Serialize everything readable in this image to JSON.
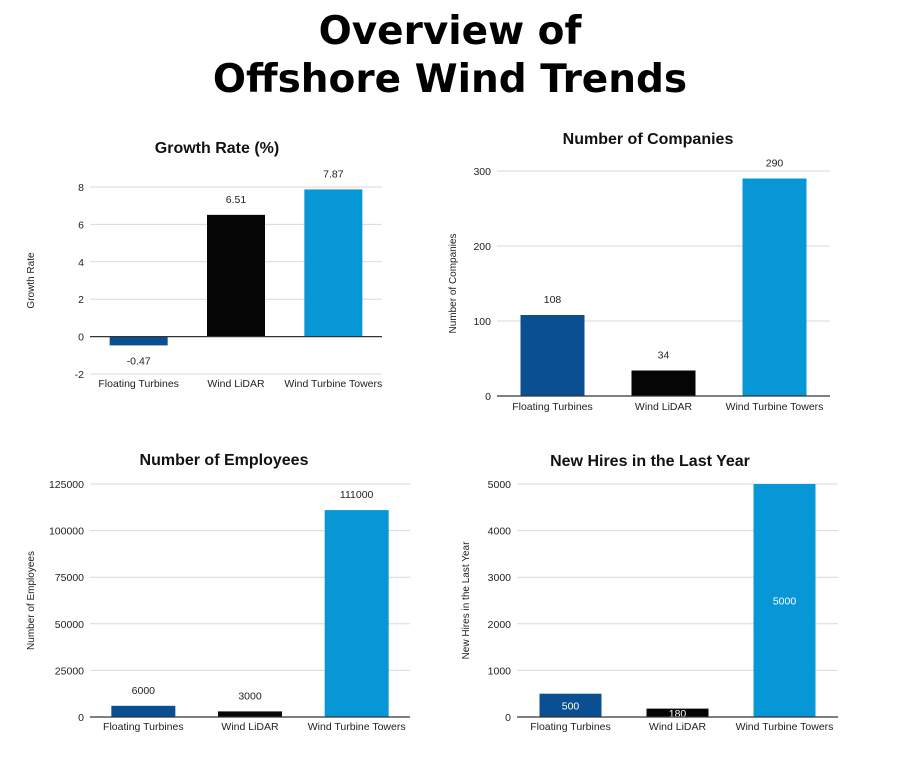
{
  "page_title": [
    "Overview of",
    "Offshore Wind Trends"
  ],
  "colors": {
    "floating": "#0b4f93",
    "lidar": "#050505",
    "towers": "#0797d6",
    "grid": "#d8d8d8",
    "axis": "#333333"
  },
  "chart_data": [
    {
      "type": "bar",
      "title": "Growth Rate (%)",
      "ylabel": "Growth Rate",
      "xlabel": "",
      "categories": [
        "Floating Turbines",
        "Wind LiDAR",
        "Wind Turbine Towers"
      ],
      "values": [
        -0.47,
        6.51,
        7.87
      ],
      "data_labels": [
        "-0.47",
        "6.51",
        "7.87"
      ],
      "ylim": [
        -2,
        8
      ],
      "yticks": [
        -2,
        0,
        2,
        4,
        6,
        8
      ],
      "grid": true,
      "label_position": "outside"
    },
    {
      "type": "bar",
      "title": "Number of Companies",
      "ylabel": "Number of Companies",
      "xlabel": "",
      "categories": [
        "Floating Turbines",
        "Wind LiDAR",
        "Wind Turbine Towers"
      ],
      "values": [
        108,
        34,
        290
      ],
      "data_labels": [
        "108",
        "34",
        "290"
      ],
      "ylim": [
        0,
        300
      ],
      "yticks": [
        0,
        100,
        200,
        300
      ],
      "grid": true,
      "label_position": "outside"
    },
    {
      "type": "bar",
      "title": "Number of Employees",
      "ylabel": "Number of Employees",
      "xlabel": "",
      "categories": [
        "Floating Turbines",
        "Wind LiDAR",
        "Wind Turbine Towers"
      ],
      "values": [
        6000,
        3000,
        111000
      ],
      "data_labels": [
        "6000",
        "3000",
        "111000"
      ],
      "ylim": [
        0,
        125000
      ],
      "yticks": [
        0,
        25000,
        50000,
        75000,
        100000,
        125000
      ],
      "grid": true,
      "label_position": "outside"
    },
    {
      "type": "bar",
      "title": "New Hires in the Last Year",
      "ylabel": "New Hires in the Last Year",
      "xlabel": "",
      "categories": [
        "Floating Turbines",
        "Wind LiDAR",
        "Wind Turbine Towers"
      ],
      "values": [
        500,
        180,
        5000
      ],
      "data_labels": [
        "500",
        "180",
        "5000"
      ],
      "ylim": [
        0,
        5000
      ],
      "yticks": [
        0,
        1000,
        2000,
        3000,
        4000,
        5000
      ],
      "grid": true,
      "label_position": "inside"
    }
  ]
}
